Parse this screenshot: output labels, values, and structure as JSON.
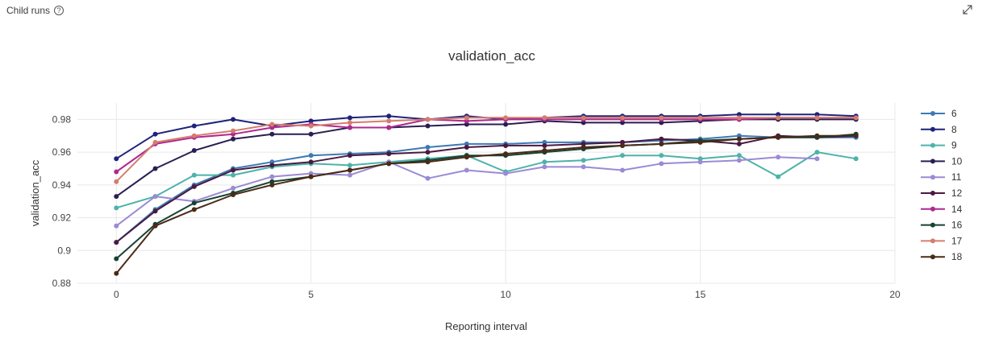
{
  "panel": {
    "title": "Child runs",
    "help_icon": "question-circle-icon",
    "expand_icon": "expand-diagonal-icon"
  },
  "chart_data": {
    "type": "line",
    "title": "validation_acc",
    "xlabel": "Reporting interval",
    "ylabel": "validation_acc",
    "xlim": [
      -1,
      20
    ],
    "ylim": [
      0.88,
      0.99
    ],
    "xticks": [
      0,
      5,
      10,
      15,
      20
    ],
    "xtick_labels": [
      "0",
      "5",
      "10",
      "15",
      "20"
    ],
    "yticks": [
      0.88,
      0.9,
      0.92,
      0.94,
      0.96,
      0.98
    ],
    "ytick_labels": [
      "0.88",
      "0.9",
      "0.92",
      "0.94",
      "0.96",
      "0.98"
    ],
    "grid": true,
    "legend_position": "right",
    "series": [
      {
        "name": "6",
        "color": "#3d79b4",
        "x": [
          0,
          1,
          2,
          3,
          4,
          5,
          6,
          7,
          8,
          9,
          10,
          11,
          12,
          13,
          14,
          15,
          16,
          17,
          18,
          19
        ],
        "y": [
          0.905,
          0.925,
          0.94,
          0.95,
          0.954,
          0.958,
          0.959,
          0.96,
          0.963,
          0.965,
          0.965,
          0.966,
          0.966,
          0.966,
          0.967,
          0.968,
          0.97,
          0.969,
          0.969,
          0.969
        ]
      },
      {
        "name": "8",
        "color": "#1f237a",
        "x": [
          0,
          1,
          2,
          3,
          4,
          5,
          6,
          7,
          8,
          9,
          10,
          11,
          12,
          13,
          14,
          15,
          16,
          17,
          18,
          19
        ],
        "y": [
          0.956,
          0.971,
          0.976,
          0.98,
          0.976,
          0.979,
          0.981,
          0.982,
          0.98,
          0.982,
          0.98,
          0.981,
          0.982,
          0.982,
          0.982,
          0.982,
          0.983,
          0.983,
          0.983,
          0.982
        ]
      },
      {
        "name": "9",
        "color": "#4db3aa",
        "x": [
          0,
          1,
          2,
          3,
          4,
          5,
          6,
          7,
          8,
          9,
          10,
          11,
          12,
          13,
          14,
          15,
          16,
          17,
          18,
          19
        ],
        "y": [
          0.926,
          0.933,
          0.946,
          0.946,
          0.951,
          0.953,
          0.952,
          0.954,
          0.956,
          0.958,
          0.948,
          0.954,
          0.955,
          0.958,
          0.958,
          0.956,
          0.958,
          0.945,
          0.96,
          0.956
        ]
      },
      {
        "name": "10",
        "color": "#2a1e52",
        "x": [
          0,
          1,
          2,
          3,
          4,
          5,
          6,
          7,
          8,
          9,
          10,
          11,
          12,
          13,
          14,
          15,
          16,
          17,
          18,
          19
        ],
        "y": [
          0.933,
          0.95,
          0.961,
          0.968,
          0.971,
          0.971,
          0.975,
          0.975,
          0.976,
          0.977,
          0.977,
          0.979,
          0.978,
          0.978,
          0.978,
          0.979,
          0.98,
          0.98,
          0.98,
          0.98
        ]
      },
      {
        "name": "11",
        "color": "#9b8ad4",
        "x": [
          0,
          1,
          2,
          3,
          4,
          5,
          6,
          7,
          8,
          9,
          10,
          11,
          12,
          13,
          14,
          15,
          16,
          17,
          18
        ],
        "y": [
          0.915,
          0.933,
          0.93,
          0.938,
          0.945,
          0.947,
          0.946,
          0.954,
          0.944,
          0.949,
          0.947,
          0.951,
          0.951,
          0.949,
          0.953,
          0.954,
          0.955,
          0.957,
          0.956
        ]
      },
      {
        "name": "12",
        "color": "#4a1941",
        "x": [
          0,
          1,
          2,
          3,
          4,
          5,
          6,
          7,
          8,
          9,
          10,
          11,
          12,
          13,
          14,
          15,
          16,
          17,
          18,
          19
        ],
        "y": [
          0.905,
          0.924,
          0.939,
          0.949,
          0.952,
          0.954,
          0.958,
          0.959,
          0.96,
          0.963,
          0.964,
          0.964,
          0.965,
          0.966,
          0.968,
          0.967,
          0.965,
          0.97,
          0.969,
          0.97
        ]
      },
      {
        "name": "14",
        "color": "#b0288f",
        "x": [
          0,
          1,
          2,
          3,
          4,
          5,
          6,
          7,
          8,
          9,
          10,
          11,
          12,
          13,
          14,
          15,
          16,
          17,
          18,
          19
        ],
        "y": [
          0.948,
          0.965,
          0.969,
          0.971,
          0.975,
          0.977,
          0.975,
          0.975,
          0.98,
          0.979,
          0.98,
          0.98,
          0.98,
          0.98,
          0.98,
          0.98,
          0.98,
          0.981,
          0.981,
          0.981
        ]
      },
      {
        "name": "16",
        "color": "#17422f",
        "x": [
          0,
          1,
          2,
          3,
          4,
          5,
          6,
          7,
          8,
          9,
          10,
          11,
          12,
          13,
          14,
          15,
          16,
          17,
          18,
          19
        ],
        "y": [
          0.895,
          0.916,
          0.929,
          0.935,
          0.942,
          0.945,
          0.949,
          0.953,
          0.955,
          0.958,
          0.958,
          0.96,
          0.962,
          0.964,
          0.965,
          0.967,
          0.968,
          0.969,
          0.969,
          0.971
        ]
      },
      {
        "name": "17",
        "color": "#d47d6d",
        "x": [
          0,
          1,
          2,
          3,
          4,
          5,
          6,
          7,
          8,
          9,
          10,
          11,
          12,
          13,
          14,
          15,
          16,
          17,
          18,
          19
        ],
        "y": [
          0.942,
          0.966,
          0.97,
          0.973,
          0.977,
          0.976,
          0.978,
          0.979,
          0.98,
          0.981,
          0.981,
          0.981,
          0.981,
          0.981,
          0.981,
          0.981,
          0.981,
          0.981,
          0.981,
          0.981
        ]
      },
      {
        "name": "18",
        "color": "#4a2a18",
        "x": [
          0,
          1,
          2,
          3,
          4,
          5,
          6,
          7,
          8,
          9,
          10,
          11,
          12,
          13,
          14,
          15,
          16,
          17,
          18,
          19
        ],
        "y": [
          0.886,
          0.915,
          0.925,
          0.934,
          0.94,
          0.945,
          0.949,
          0.953,
          0.954,
          0.957,
          0.959,
          0.961,
          0.963,
          0.964,
          0.965,
          0.966,
          0.968,
          0.969,
          0.97,
          0.97
        ]
      }
    ]
  }
}
